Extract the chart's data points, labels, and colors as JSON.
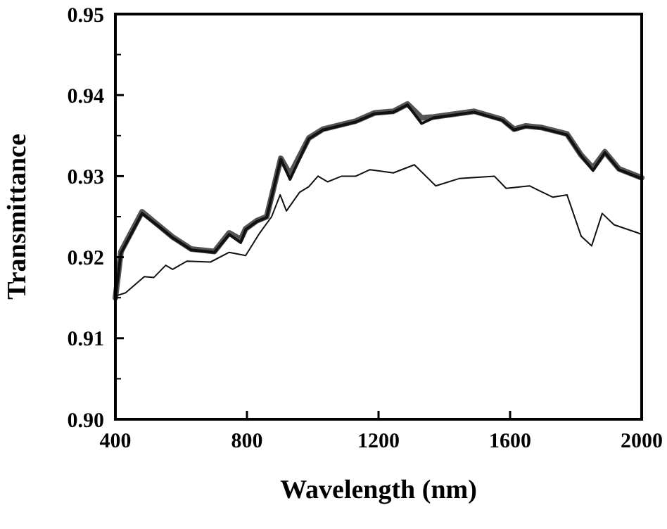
{
  "chart_data": {
    "type": "line",
    "xlabel": "Wavelength (nm)",
    "ylabel": "Transmittance",
    "xlim": [
      400,
      2000
    ],
    "ylim": [
      0.9,
      0.95
    ],
    "xticks": [
      400,
      800,
      1200,
      1600,
      2000
    ],
    "yticks": [
      {
        "value": 0.9,
        "label": "0.90"
      },
      {
        "value": 0.91,
        "label": "0.91"
      },
      {
        "value": 0.92,
        "label": "0.92"
      },
      {
        "value": 0.93,
        "label": "0.93"
      },
      {
        "value": 0.94,
        "label": "0.94"
      },
      {
        "value": 0.95,
        "label": "0.95"
      }
    ],
    "grid": false,
    "marker": "none",
    "line_style": "solid",
    "series": [
      {
        "color": "#555555",
        "x": [
          400,
          417,
          481,
          538,
          574,
          631,
          701,
          746,
          781,
          796,
          830,
          860,
          903,
          931,
          988,
          1031,
          1131,
          1188,
          1245,
          1288,
          1331,
          1368,
          1491,
          1576,
          1612,
          1648,
          1696,
          1773,
          1816,
          1852,
          1888,
          1931,
          1988,
          2000
        ],
        "values": [
          0.915,
          0.9207,
          0.9256,
          0.9237,
          0.9225,
          0.921,
          0.9207,
          0.923,
          0.9222,
          0.9235,
          0.9245,
          0.925,
          0.9322,
          0.9302,
          0.9347,
          0.9358,
          0.9368,
          0.9378,
          0.938,
          0.9389,
          0.9372,
          0.9373,
          0.938,
          0.937,
          0.9358,
          0.9362,
          0.936,
          0.9352,
          0.9326,
          0.931,
          0.933,
          0.9309,
          0.93,
          0.9298
        ]
      },
      {
        "color": "#111111",
        "x": [
          400,
          417,
          481,
          538,
          574,
          631,
          701,
          746,
          781,
          796,
          830,
          860,
          903,
          931,
          988,
          1031,
          1131,
          1188,
          1245,
          1288,
          1331,
          1368,
          1491,
          1576,
          1612,
          1648,
          1696,
          1773,
          1816,
          1852,
          1888,
          1931,
          1988,
          2000
        ],
        "values": [
          0.915,
          0.9205,
          0.9254,
          0.9236,
          0.9224,
          0.9209,
          0.9206,
          0.9228,
          0.9218,
          0.9234,
          0.9244,
          0.9249,
          0.9321,
          0.9296,
          0.9346,
          0.9357,
          0.9367,
          0.9377,
          0.9379,
          0.9388,
          0.9365,
          0.9372,
          0.9379,
          0.9369,
          0.9357,
          0.9361,
          0.9359,
          0.9351,
          0.9325,
          0.9307,
          0.9329,
          0.9308,
          0.9299,
          0.9297
        ]
      },
      {
        "color": "#111111",
        "x": [
          400,
          431,
          488,
          517,
          553,
          574,
          617,
          689,
          746,
          796,
          839,
          875,
          901,
          920,
          960,
          988,
          1016,
          1045,
          1088,
          1131,
          1174,
          1245,
          1309,
          1374,
          1445,
          1552,
          1588,
          1659,
          1730,
          1773,
          1816,
          1848,
          1880,
          1916,
          1988,
          2000
        ],
        "values": [
          0.9152,
          0.9156,
          0.9176,
          0.9175,
          0.919,
          0.9185,
          0.9195,
          0.9194,
          0.9206,
          0.9202,
          0.923,
          0.925,
          0.9277,
          0.9257,
          0.928,
          0.9287,
          0.93,
          0.9293,
          0.93,
          0.93,
          0.9308,
          0.9304,
          0.9314,
          0.9288,
          0.9297,
          0.93,
          0.9285,
          0.9288,
          0.9274,
          0.9277,
          0.9226,
          0.9214,
          0.9254,
          0.924,
          0.923,
          0.9228
        ]
      }
    ]
  }
}
